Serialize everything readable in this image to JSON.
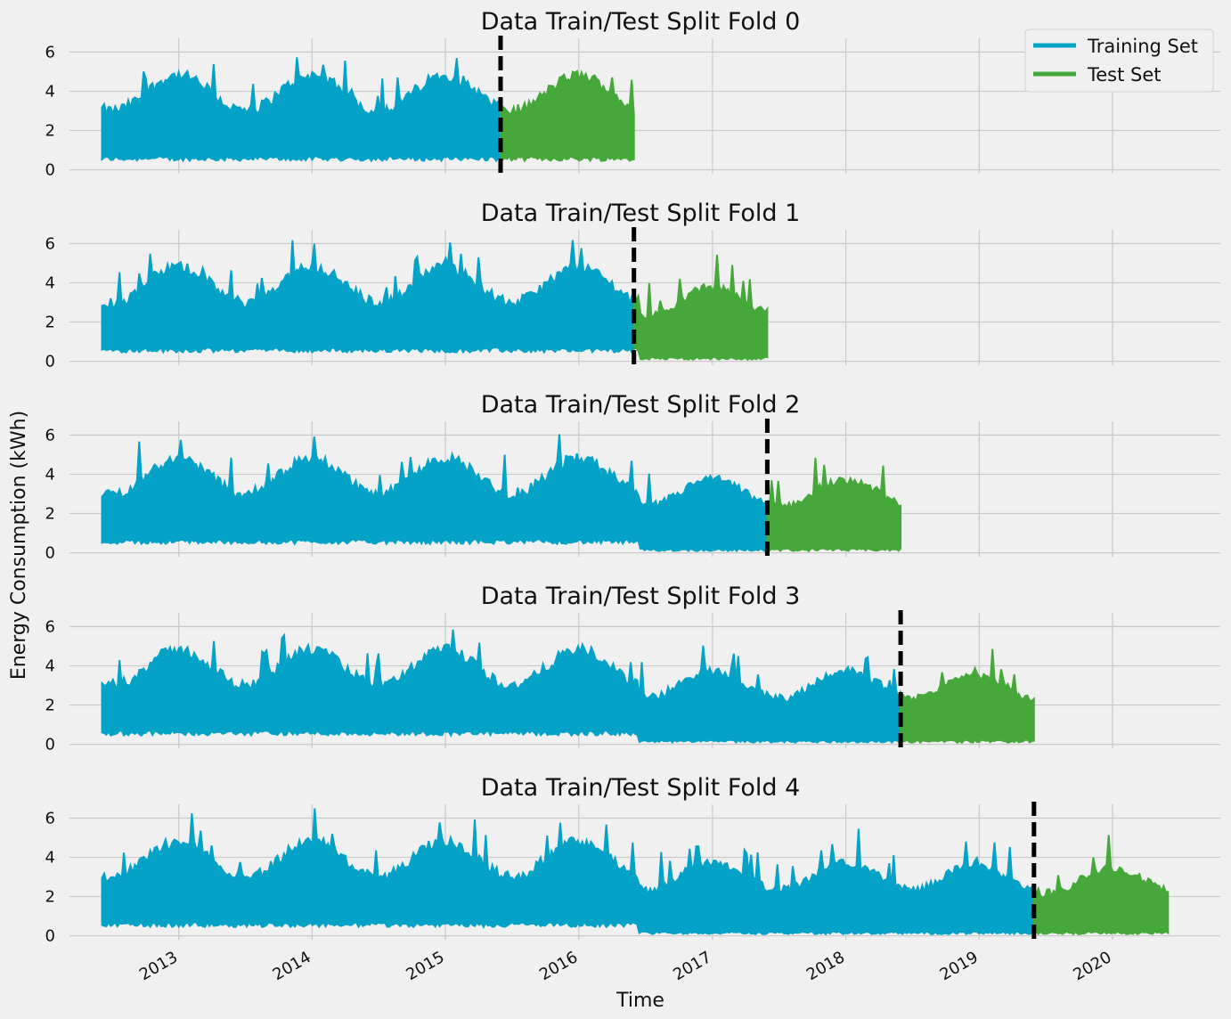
{
  "chart_data": {
    "type": "line",
    "ylabel": "Energy Consumption (kWh)",
    "xlabel": "Time",
    "x_tick_labels": [
      "2013",
      "2014",
      "2015",
      "2016",
      "2017",
      "2018",
      "2019",
      "2020"
    ],
    "y_ticks": [
      0,
      2,
      4,
      6
    ],
    "ylim": [
      -0.2,
      6.7
    ],
    "xlim": [
      "2012-03-08",
      "2020-10-22"
    ],
    "grid": true,
    "legend": {
      "position": "top-right",
      "entries": [
        "Training Set",
        "Test Set"
      ]
    },
    "colors": {
      "training": "#05a2c7",
      "test": "#46a83b",
      "split_line": "#000000",
      "background": "#f0f0f0",
      "grid": "#cbcbcb"
    },
    "folds": [
      {
        "title": "Data Train/Test Split Fold 0",
        "train_range": [
          "2012-06-05",
          "2015-06-01"
        ],
        "test_range": [
          "2015-06-01",
          "2016-05-31"
        ],
        "split": "2015-06-01"
      },
      {
        "title": "Data Train/Test Split Fold 1",
        "train_range": [
          "2012-06-05",
          "2016-05-31"
        ],
        "test_range": [
          "2016-05-31",
          "2017-05-31"
        ],
        "split": "2016-05-31"
      },
      {
        "title": "Data Train/Test Split Fold 2",
        "train_range": [
          "2012-06-05",
          "2017-05-31"
        ],
        "test_range": [
          "2017-05-31",
          "2018-05-31"
        ],
        "split": "2017-05-31"
      },
      {
        "title": "Data Train/Test Split Fold 3",
        "train_range": [
          "2012-06-05",
          "2018-05-31"
        ],
        "test_range": [
          "2018-05-31",
          "2019-05-31"
        ],
        "split": "2018-05-31"
      },
      {
        "title": "Data Train/Test Split Fold 4",
        "train_range": [
          "2012-06-05",
          "2019-05-31"
        ],
        "test_range": [
          "2019-05-31",
          "2020-06-01"
        ],
        "split": "2019-05-31"
      }
    ]
  }
}
